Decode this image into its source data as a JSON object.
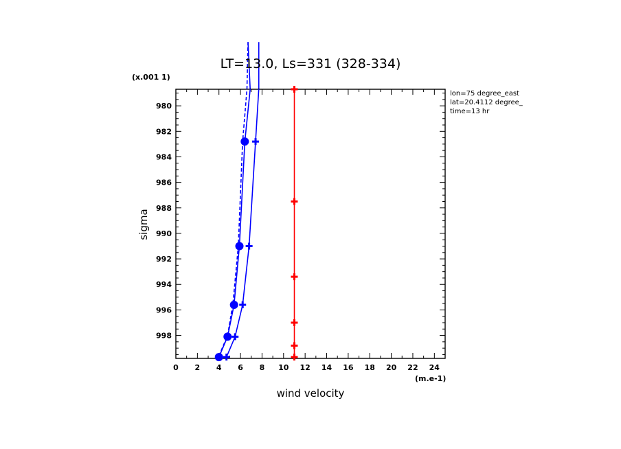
{
  "chart_data": {
    "type": "line",
    "title": "LT=13.0, Ls=331 (328-334)",
    "xlabel": "wind velocity",
    "x_unit": "(m.e-1)",
    "ylabel": "sigma",
    "y_unit": "(x.001 1)",
    "xlim": [
      0,
      25
    ],
    "ylim": [
      999.8,
      978.7
    ],
    "x_ticks": [
      0,
      2,
      4,
      6,
      8,
      10,
      12,
      14,
      16,
      18,
      20,
      22,
      24
    ],
    "y_ticks": [
      980,
      982,
      984,
      986,
      988,
      990,
      992,
      994,
      996,
      998
    ],
    "info_lines": [
      "lon=75 degree_east",
      "lat=20.4112 degree_",
      "time=13 hr"
    ],
    "grid": false,
    "series": [
      {
        "color": "#0000ff",
        "line": "solid",
        "marker": "plus",
        "points": [
          [
            4.7,
            999.7
          ],
          [
            5.5,
            998.1
          ],
          [
            6.2,
            995.6
          ],
          [
            6.8,
            991.0
          ],
          [
            7.4,
            982.8
          ],
          [
            7.7,
            978.7
          ]
        ],
        "extend_to": [
          7.7,
          975.0
        ]
      },
      {
        "color": "#0000ff",
        "line": "solid",
        "marker": "circle",
        "points": [
          [
            4.0,
            999.7
          ],
          [
            4.8,
            998.1
          ],
          [
            5.4,
            995.6
          ],
          [
            5.9,
            991.0
          ],
          [
            6.4,
            982.8
          ],
          [
            6.9,
            978.7
          ]
        ],
        "extend_to": [
          6.7,
          975.0
        ]
      },
      {
        "color": "#0000ff",
        "line": "dashed",
        "marker": "none",
        "points": [
          [
            4.0,
            999.6
          ],
          [
            4.8,
            998.0
          ],
          [
            5.3,
            995.5
          ],
          [
            5.8,
            991.0
          ],
          [
            6.2,
            982.8
          ],
          [
            6.6,
            978.7
          ]
        ],
        "extend_to": [
          6.7,
          975.0
        ]
      },
      {
        "color": "#ff0000",
        "line": "solid",
        "marker": "plus",
        "points": [
          [
            11.0,
            999.7
          ],
          [
            11.0,
            998.8
          ],
          [
            11.0,
            997.0
          ],
          [
            11.0,
            993.4
          ],
          [
            11.0,
            987.5
          ],
          [
            11.0,
            978.7
          ]
        ]
      }
    ]
  }
}
